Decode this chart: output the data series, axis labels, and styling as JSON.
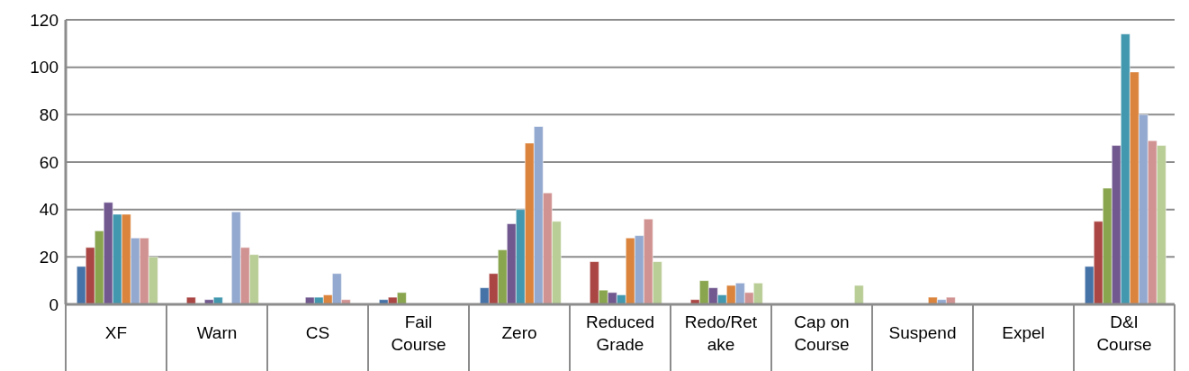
{
  "chart_data": {
    "type": "bar",
    "categories": [
      "XF",
      "Warn",
      "CS",
      "Fail Course",
      "Zero",
      "Reduced Grade",
      "Redo/Retake",
      "Cap on Course",
      "Suspend",
      "Expel",
      "D&I Course"
    ],
    "series": [
      {
        "color": "#4572a7",
        "values": [
          16,
          null,
          null,
          2,
          7,
          null,
          null,
          null,
          null,
          null,
          16
        ]
      },
      {
        "color": "#aa4643",
        "values": [
          24,
          3,
          null,
          3,
          13,
          18,
          2,
          null,
          null,
          null,
          35
        ]
      },
      {
        "color": "#89a54e",
        "values": [
          31,
          null,
          null,
          5,
          23,
          6,
          10,
          null,
          null,
          null,
          49
        ]
      },
      {
        "color": "#71588f",
        "values": [
          43,
          2,
          3,
          null,
          34,
          5,
          7,
          null,
          null,
          null,
          67
        ]
      },
      {
        "color": "#4198af",
        "values": [
          38,
          3,
          3,
          null,
          40,
          4,
          4,
          null,
          null,
          null,
          114
        ]
      },
      {
        "color": "#db843d",
        "values": [
          38,
          null,
          4,
          null,
          68,
          28,
          8,
          null,
          3,
          null,
          98
        ]
      },
      {
        "color": "#93a9cf",
        "values": [
          28,
          39,
          13,
          null,
          75,
          29,
          9,
          null,
          2,
          null,
          80
        ]
      },
      {
        "color": "#d19392",
        "values": [
          28,
          24,
          2,
          null,
          47,
          36,
          5,
          null,
          3,
          null,
          69
        ]
      },
      {
        "color": "#b9cd96",
        "values": [
          20,
          21,
          null,
          null,
          35,
          18,
          9,
          8,
          null,
          null,
          67
        ]
      }
    ],
    "ylim": [
      0,
      120
    ],
    "yticks": [
      0,
      20,
      40,
      60,
      80,
      100,
      120
    ],
    "grid": "y",
    "legend": false
  }
}
